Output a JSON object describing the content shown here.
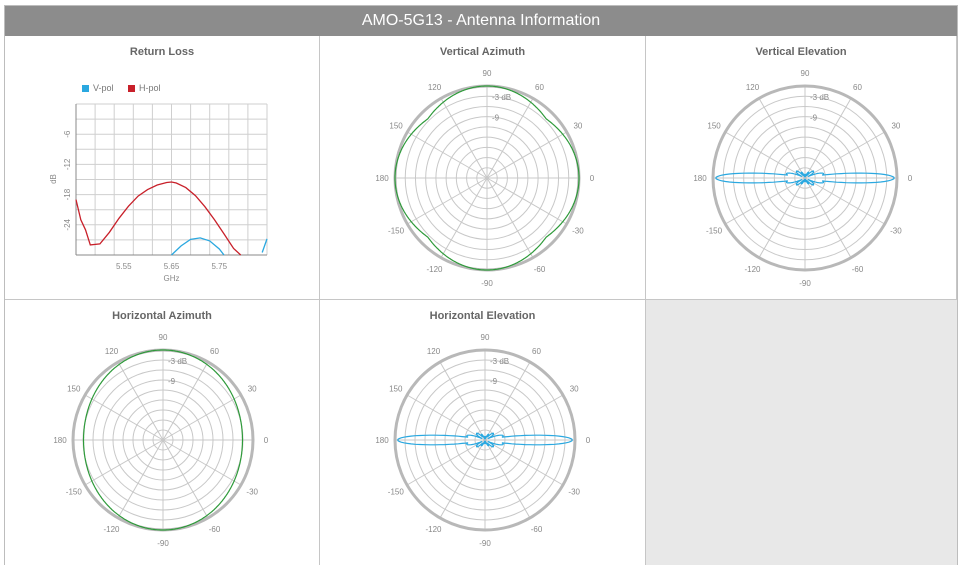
{
  "header": {
    "title": "AMO-5G13 - Antenna Information"
  },
  "colors": {
    "vpol": "#2aa8e0",
    "hpol": "#c8202a",
    "pattern_green": "#2e9a3a",
    "pattern_blue": "#2aa8e0",
    "grid": "#c8c8c8"
  },
  "chart_data": [
    {
      "type": "line",
      "title": "Return Loss",
      "xlabel": "GHz",
      "ylabel": "dB",
      "xlim": [
        5.45,
        5.85
      ],
      "ylim": [
        -30,
        0
      ],
      "xticks": [
        "5.55",
        "5.65",
        "5.75"
      ],
      "xtick_values": [
        5.55,
        5.65,
        5.75
      ],
      "yticks": [
        "-6",
        "-12",
        "-18",
        "-24"
      ],
      "ytick_values": [
        -6,
        -12,
        -18,
        -24
      ],
      "grid": true,
      "legend": "top-left",
      "series": [
        {
          "name": "V-pol",
          "color": "#2aa8e0",
          "x": [
            5.65,
            5.67,
            5.69,
            5.71,
            5.73,
            5.75,
            5.76
          ],
          "y": [
            -30,
            -28.2,
            -26.9,
            -26.6,
            -27.2,
            -28.8,
            -30
          ]
        },
        {
          "name": "V-pol",
          "color": "#2aa8e0",
          "x": [
            5.84,
            5.85
          ],
          "y": [
            -29.5,
            -26.8
          ]
        },
        {
          "name": "H-pol",
          "color": "#c8202a",
          "x": [
            5.45,
            5.46,
            5.47,
            5.48,
            5.5,
            5.52,
            5.54,
            5.56,
            5.58,
            5.6,
            5.62,
            5.64,
            5.65,
            5.66,
            5.68,
            5.7,
            5.72,
            5.74,
            5.76,
            5.78,
            5.795
          ],
          "y": [
            -19,
            -23,
            -25,
            -28,
            -27.8,
            -25.5,
            -22.7,
            -20.3,
            -18.3,
            -17,
            -16.1,
            -15.6,
            -15.5,
            -15.7,
            -16.6,
            -18.2,
            -20.4,
            -23,
            -25.8,
            -28.7,
            -30
          ]
        }
      ]
    },
    {
      "type": "polar",
      "title": "Vertical Azimuth",
      "angle_labels": [
        "0",
        "30",
        "60",
        "90",
        "120",
        "150",
        "180",
        "-150",
        "-120",
        "-90",
        "-60",
        "-30"
      ],
      "ring_labels": [
        "-3 dB",
        "-9"
      ],
      "color": "#2e9a3a",
      "pattern": "azimuth_square",
      "min_level": 0.86
    },
    {
      "type": "polar",
      "title": "Vertical Elevation",
      "angle_labels": [
        "0",
        "30",
        "60",
        "90",
        "120",
        "150",
        "180",
        "-150",
        "-120",
        "-90",
        "-60",
        "-30"
      ],
      "ring_labels": [
        "-3 dB",
        "-9"
      ],
      "color": "#2aa8e0",
      "pattern": "elevation_narrow"
    },
    {
      "type": "polar",
      "title": "Horizontal Azimuth",
      "angle_labels": [
        "0",
        "30",
        "60",
        "90",
        "120",
        "150",
        "180",
        "-150",
        "-120",
        "-90",
        "-60",
        "-30"
      ],
      "ring_labels": [
        "-3 dB",
        "-9"
      ],
      "color": "#2e9a3a",
      "pattern": "azimuth_round",
      "min_level": 0.87
    },
    {
      "type": "polar",
      "title": "Horizontal Elevation",
      "angle_labels": [
        "0",
        "30",
        "60",
        "90",
        "120",
        "150",
        "180",
        "-150",
        "-120",
        "-90",
        "-60",
        "-30"
      ],
      "ring_labels": [
        "-3 dB",
        "-9"
      ],
      "color": "#2aa8e0",
      "pattern": "elevation_narrow"
    }
  ]
}
